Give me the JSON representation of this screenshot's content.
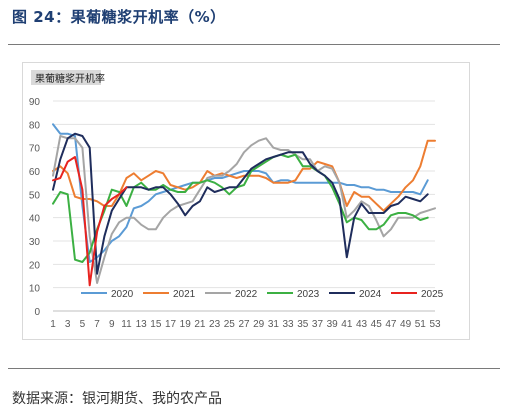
{
  "page": {
    "title": "图 24：果葡糖浆开机率（%）",
    "source": "数据来源：银河期货、我的农产品"
  },
  "chart_data": {
    "type": "line",
    "title": "果葡糖浆开机率",
    "xlabel": "",
    "ylabel": "",
    "ylim": [
      0,
      90
    ],
    "yticks": [
      0,
      10,
      20,
      30,
      40,
      50,
      60,
      70,
      80,
      90
    ],
    "xlim": [
      1,
      53
    ],
    "xticks": [
      1,
      3,
      5,
      7,
      9,
      11,
      13,
      15,
      17,
      19,
      21,
      23,
      25,
      27,
      29,
      31,
      33,
      35,
      37,
      39,
      41,
      43,
      45,
      47,
      49,
      51,
      53
    ],
    "grid": true,
    "legend": "bottom",
    "series": [
      {
        "name": "2020",
        "color": "#5b9bd5",
        "x": [
          1,
          2,
          3,
          4,
          5,
          6,
          7,
          8,
          9,
          10,
          11,
          12,
          13,
          14,
          15,
          16,
          17,
          18,
          19,
          20,
          21,
          22,
          23,
          24,
          25,
          26,
          27,
          28,
          29,
          30,
          31,
          32,
          33,
          34,
          35,
          36,
          37,
          38,
          39,
          40,
          41,
          42,
          43,
          44,
          45,
          46,
          47,
          48,
          49,
          50,
          51,
          52
        ],
        "y": [
          80,
          76,
          76,
          75,
          45,
          21,
          23,
          26,
          30,
          32,
          36,
          44,
          45,
          47,
          50,
          51,
          52,
          53,
          54,
          55,
          55,
          56,
          57,
          57,
          58,
          59,
          60,
          60,
          60,
          59,
          55,
          56,
          56,
          55,
          55,
          55,
          55,
          55,
          55,
          55,
          54,
          54,
          53,
          53,
          52,
          52,
          51,
          51,
          51,
          51,
          50,
          56
        ]
      },
      {
        "name": "2021",
        "color": "#ed7d31",
        "x": [
          1,
          2,
          3,
          4,
          5,
          6,
          7,
          8,
          9,
          10,
          11,
          12,
          13,
          14,
          15,
          16,
          17,
          18,
          19,
          20,
          21,
          22,
          23,
          24,
          25,
          26,
          27,
          28,
          29,
          30,
          31,
          32,
          33,
          34,
          35,
          36,
          37,
          38,
          39,
          40,
          41,
          42,
          43,
          44,
          45,
          46,
          47,
          48,
          49,
          50,
          51,
          52,
          53
        ],
        "y": [
          60,
          62,
          59,
          49,
          48,
          48,
          47,
          45,
          45,
          50,
          57,
          59,
          56,
          58,
          60,
          59,
          54,
          53,
          52,
          53,
          55,
          60,
          58,
          59,
          58,
          57,
          58,
          58,
          58,
          57,
          55,
          55,
          55,
          56,
          61,
          61,
          64,
          63,
          62,
          55,
          45,
          51,
          49,
          49,
          46,
          43,
          46,
          49,
          53,
          56,
          62,
          73,
          73
        ]
      },
      {
        "name": "2022",
        "color": "#a5a5a5",
        "x": [
          1,
          2,
          3,
          4,
          5,
          6,
          7,
          8,
          9,
          10,
          11,
          12,
          13,
          14,
          15,
          16,
          17,
          18,
          19,
          20,
          21,
          22,
          23,
          24,
          25,
          26,
          27,
          28,
          29,
          30,
          31,
          32,
          33,
          34,
          35,
          36,
          37,
          38,
          39,
          40,
          41,
          42,
          43,
          44,
          45,
          46,
          47,
          48,
          49,
          50,
          51,
          52,
          53
        ],
        "y": [
          58,
          75,
          74,
          74,
          70,
          32,
          12,
          23,
          33,
          38,
          40,
          40,
          37,
          35,
          35,
          40,
          43,
          45,
          46,
          47,
          52,
          57,
          58,
          58,
          60,
          63,
          68,
          71,
          73,
          74,
          70,
          69,
          69,
          67,
          65,
          65,
          60,
          62,
          61,
          55,
          40,
          43,
          47,
          45,
          39,
          32,
          35,
          40,
          40,
          40,
          42,
          43,
          44
        ]
      },
      {
        "name": "2023",
        "color": "#3cb043",
        "x": [
          1,
          2,
          3,
          4,
          5,
          6,
          7,
          8,
          9,
          10,
          11,
          12,
          13,
          14,
          15,
          16,
          17,
          18,
          19,
          20,
          21,
          22,
          23,
          24,
          25,
          26,
          27,
          28,
          29,
          30,
          31,
          32,
          33,
          34,
          35,
          36,
          37,
          38,
          39,
          40,
          41,
          42,
          43,
          44,
          45,
          46,
          47,
          48,
          49,
          50,
          51,
          52
        ],
        "y": [
          46,
          51,
          50,
          22,
          21,
          25,
          35,
          43,
          52,
          51,
          45,
          53,
          55,
          52,
          52,
          54,
          52,
          51,
          51,
          55,
          55,
          56,
          55,
          53,
          50,
          53,
          54,
          60,
          62,
          64,
          66,
          67,
          66,
          67,
          62,
          62,
          60,
          58,
          53,
          46,
          38,
          40,
          39,
          35,
          35,
          37,
          41,
          42,
          42,
          41,
          39,
          40
        ]
      },
      {
        "name": "2024",
        "color": "#1f2d5c",
        "x": [
          1,
          2,
          3,
          4,
          5,
          6,
          7,
          8,
          9,
          10,
          11,
          12,
          13,
          14,
          15,
          16,
          17,
          18,
          19,
          20,
          21,
          22,
          23,
          24,
          25,
          26,
          27,
          28,
          29,
          30,
          31,
          32,
          33,
          34,
          35,
          36,
          37,
          38,
          39,
          40,
          41,
          42,
          43,
          44,
          45,
          46,
          47,
          48,
          49,
          50,
          51,
          52
        ],
        "y": [
          52,
          65,
          74,
          76,
          75,
          70,
          16,
          32,
          43,
          48,
          53,
          53,
          53,
          52,
          53,
          53,
          50,
          46,
          41,
          45,
          47,
          53,
          51,
          52,
          53,
          53,
          57,
          61,
          63,
          65,
          66,
          67,
          68,
          68,
          68,
          63,
          60,
          58,
          55,
          48,
          23,
          40,
          46,
          42,
          42,
          42,
          45,
          46,
          49,
          48,
          47,
          50
        ]
      },
      {
        "name": "2025",
        "color": "#e8231f",
        "x": [
          1,
          2,
          3,
          4,
          5,
          6,
          7,
          8,
          9,
          10,
          11
        ],
        "y": [
          56,
          57,
          64,
          66,
          52,
          11,
          34,
          45,
          48,
          50,
          53
        ]
      }
    ]
  }
}
